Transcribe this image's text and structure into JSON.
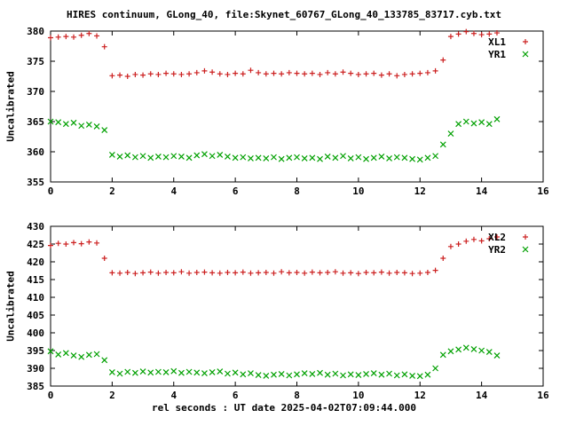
{
  "title": "HIRES continuum, GLong_40, file:Skynet_60767_GLong_40_133785_83717.cyb.txt",
  "xlabel": "rel seconds : UT date 2025-04-02T07:09:44.000",
  "colors": {
    "red": "#cc2020",
    "green": "#00a000",
    "axis": "#000000",
    "background": "#ffffff"
  },
  "chart_data": [
    {
      "type": "scatter",
      "ylabel": "Uncalibrated",
      "xlim": [
        0,
        16
      ],
      "ylim": [
        355,
        380
      ],
      "xticks": [
        0,
        2,
        4,
        6,
        8,
        10,
        12,
        14,
        16
      ],
      "yticks": [
        355,
        360,
        365,
        370,
        375,
        380
      ],
      "legend_position": "top-right",
      "grid": false,
      "x": [
        0.0,
        0.25,
        0.5,
        0.75,
        1.0,
        1.25,
        1.5,
        1.75,
        2.0,
        2.25,
        2.5,
        2.75,
        3.0,
        3.25,
        3.5,
        3.75,
        4.0,
        4.25,
        4.5,
        4.75,
        5.0,
        5.25,
        5.5,
        5.75,
        6.0,
        6.25,
        6.5,
        6.75,
        7.0,
        7.25,
        7.5,
        7.75,
        8.0,
        8.25,
        8.5,
        8.75,
        9.0,
        9.25,
        9.5,
        9.75,
        10.0,
        10.25,
        10.5,
        10.75,
        11.0,
        11.25,
        11.5,
        11.75,
        12.0,
        12.25,
        12.5,
        12.75,
        13.0,
        13.25,
        13.5,
        13.75,
        14.0,
        14.25,
        14.5
      ],
      "series": [
        {
          "name": "XL1",
          "marker": "plus",
          "color": "#cc2020",
          "values": [
            378.9,
            379.0,
            379.1,
            379.0,
            379.3,
            379.6,
            379.2,
            377.4,
            372.6,
            372.7,
            372.5,
            372.8,
            372.7,
            372.9,
            372.8,
            373.0,
            372.9,
            372.8,
            372.9,
            373.1,
            373.4,
            373.2,
            372.9,
            372.8,
            373.0,
            372.9,
            373.5,
            373.1,
            372.9,
            373.0,
            372.9,
            373.1,
            373.0,
            372.9,
            373.0,
            372.8,
            373.1,
            372.9,
            373.2,
            373.0,
            372.8,
            372.9,
            373.0,
            372.7,
            372.9,
            372.6,
            372.8,
            372.9,
            373.0,
            373.1,
            373.4,
            375.2,
            379.1,
            379.5,
            379.9,
            379.6,
            379.4,
            379.5,
            379.7
          ]
        },
        {
          "name": "YR1",
          "marker": "cross",
          "color": "#00a000",
          "values": [
            365.0,
            364.9,
            364.6,
            364.8,
            364.3,
            364.5,
            364.2,
            363.6,
            359.5,
            359.2,
            359.4,
            359.1,
            359.3,
            359.0,
            359.2,
            359.1,
            359.3,
            359.2,
            359.0,
            359.4,
            359.6,
            359.3,
            359.5,
            359.2,
            359.0,
            359.1,
            358.9,
            359.0,
            358.9,
            359.1,
            358.8,
            359.0,
            359.1,
            358.9,
            359.0,
            358.8,
            359.2,
            359.0,
            359.3,
            358.9,
            359.1,
            358.8,
            359.0,
            359.2,
            358.9,
            359.1,
            359.0,
            358.8,
            358.7,
            359.0,
            359.3,
            361.2,
            363.0,
            364.6,
            365.0,
            364.7,
            364.9,
            364.6,
            365.4
          ]
        }
      ]
    },
    {
      "type": "scatter",
      "ylabel": "Uncalibrated",
      "xlim": [
        0,
        16
      ],
      "ylim": [
        385,
        430
      ],
      "xticks": [
        0,
        2,
        4,
        6,
        8,
        10,
        12,
        14,
        16
      ],
      "yticks": [
        385,
        390,
        395,
        400,
        405,
        410,
        415,
        420,
        425,
        430
      ],
      "legend_position": "top-right",
      "grid": false,
      "x": [
        0.0,
        0.25,
        0.5,
        0.75,
        1.0,
        1.25,
        1.5,
        1.75,
        2.0,
        2.25,
        2.5,
        2.75,
        3.0,
        3.25,
        3.5,
        3.75,
        4.0,
        4.25,
        4.5,
        4.75,
        5.0,
        5.25,
        5.5,
        5.75,
        6.0,
        6.25,
        6.5,
        6.75,
        7.0,
        7.25,
        7.5,
        7.75,
        8.0,
        8.25,
        8.5,
        8.75,
        9.0,
        9.25,
        9.5,
        9.75,
        10.0,
        10.25,
        10.5,
        10.75,
        11.0,
        11.25,
        11.5,
        11.75,
        12.0,
        12.25,
        12.5,
        12.75,
        13.0,
        13.25,
        13.5,
        13.75,
        14.0,
        14.25,
        14.5
      ],
      "series": [
        {
          "name": "XL2",
          "marker": "plus",
          "color": "#cc2020",
          "values": [
            424.6,
            425.2,
            425.0,
            425.4,
            425.1,
            425.6,
            425.3,
            421.0,
            416.9,
            416.8,
            417.0,
            416.7,
            416.9,
            417.1,
            416.8,
            417.0,
            416.9,
            417.2,
            416.8,
            417.0,
            417.1,
            416.9,
            416.8,
            417.0,
            416.9,
            417.1,
            416.8,
            416.9,
            417.0,
            416.8,
            417.2,
            416.9,
            417.0,
            416.8,
            417.1,
            416.9,
            417.0,
            417.2,
            416.8,
            416.9,
            416.7,
            417.0,
            416.9,
            417.1,
            416.8,
            417.0,
            416.9,
            416.7,
            416.8,
            417.0,
            417.6,
            421.0,
            424.3,
            425.0,
            425.8,
            426.3,
            425.9,
            426.5,
            427.0
          ]
        },
        {
          "name": "YR2",
          "marker": "cross",
          "color": "#00a000",
          "values": [
            394.8,
            393.9,
            394.3,
            393.6,
            393.2,
            393.8,
            394.0,
            392.3,
            388.9,
            388.5,
            389.0,
            388.7,
            389.1,
            388.8,
            389.0,
            388.9,
            389.2,
            388.7,
            389.0,
            388.8,
            388.6,
            388.9,
            389.1,
            388.5,
            388.8,
            388.3,
            388.6,
            388.1,
            387.9,
            388.2,
            388.4,
            388.0,
            388.3,
            388.6,
            388.4,
            388.7,
            388.2,
            388.5,
            388.0,
            388.3,
            388.1,
            388.4,
            388.6,
            388.2,
            388.5,
            388.0,
            388.3,
            387.9,
            387.8,
            388.2,
            390.0,
            393.8,
            394.8,
            395.3,
            395.8,
            395.4,
            395.0,
            394.6,
            393.6
          ]
        }
      ]
    }
  ]
}
